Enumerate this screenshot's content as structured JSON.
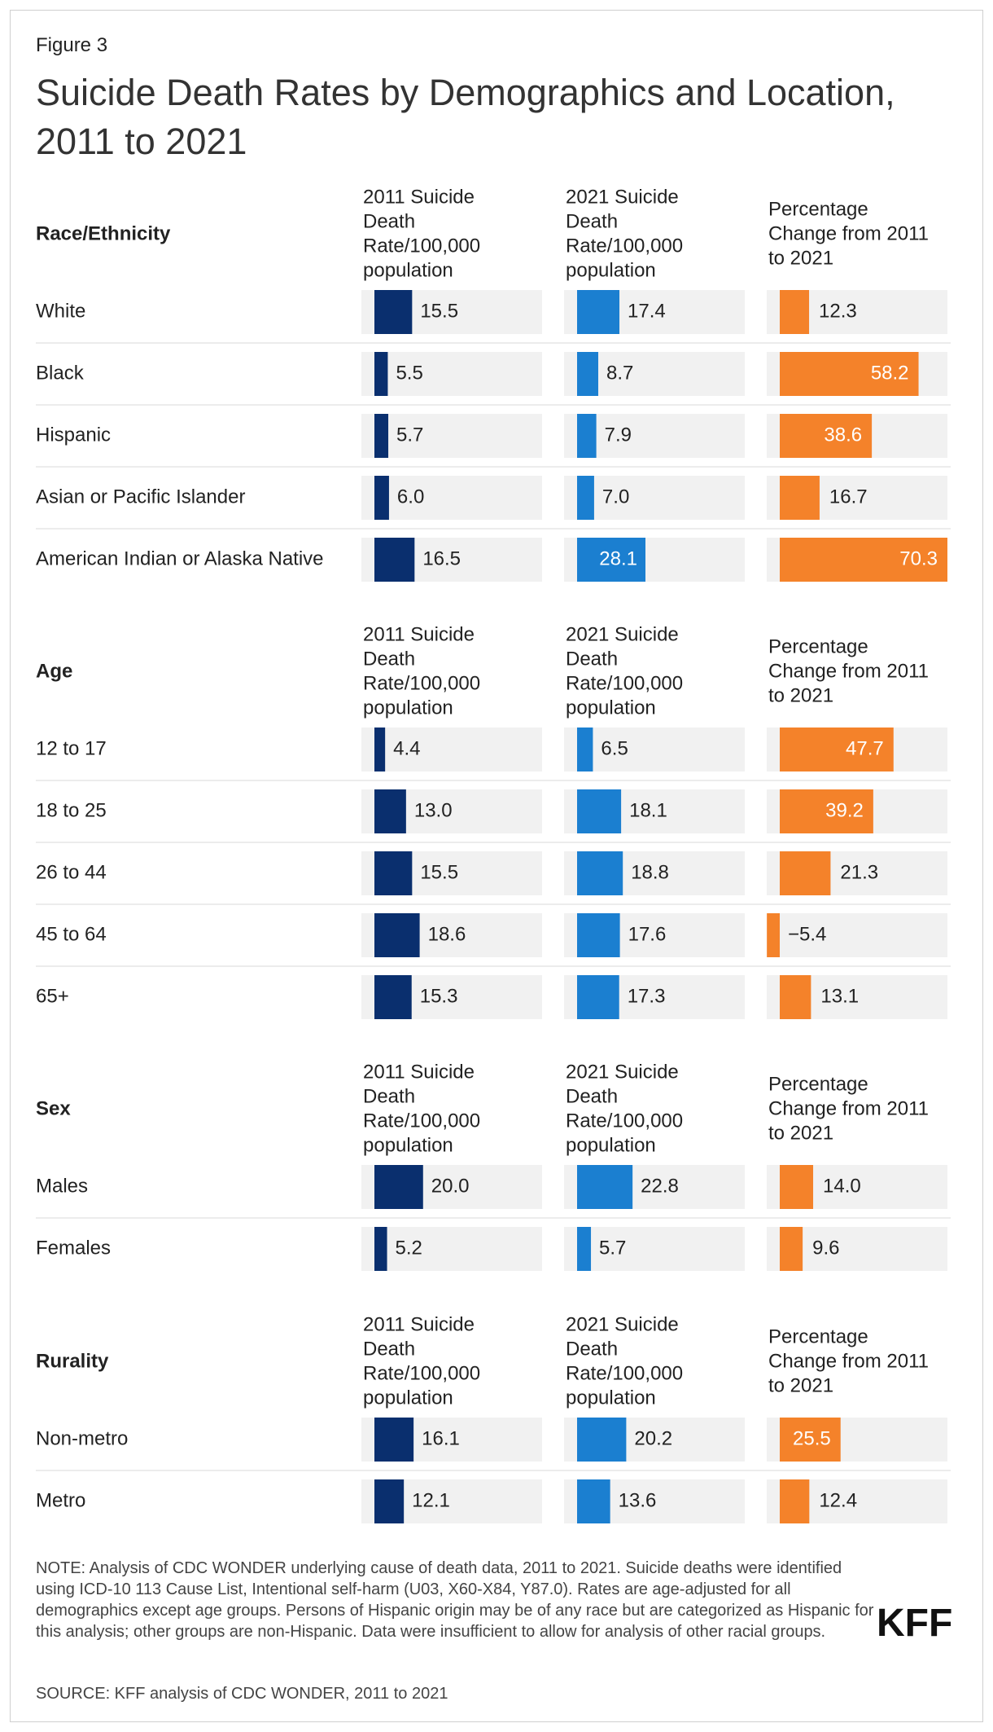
{
  "figure_label": "Figure 3",
  "title": "Suicide Death Rates by Demographics and Location, 2011 to 2021",
  "note": "NOTE: Analysis of CDC WONDER underlying cause of death data, 2011 to 2021. Suicide deaths were identified using ICD-10 113 Cause List, Intentional self-harm (U03, X60-X84, Y87.0). Rates are age-adjusted for all demographics except age groups. Persons of Hispanic origin may be of any race but are categorized as Hispanic for this analysis; other groups are non-Hispanic. Data were insufficient to allow for analysis of other racial groups.",
  "source": "SOURCE: KFF analysis of CDC WONDER, 2011 to 2021",
  "logo": "KFF",
  "colors": {
    "rate_2011": "#0a2f6e",
    "rate_2021": "#1b7fd0",
    "pct_change": "#f4822a",
    "track": "#f1f1f1",
    "divider": "#d9d9d9"
  },
  "chart_data": {
    "type": "table",
    "columns": [
      "2011 Suicide Death Rate/100,000 population",
      "2021 Suicide Death Rate/100,000 population",
      "Percentage Change from 2011 to 2021"
    ],
    "column_header_lines": [
      [
        "2011 Suicide",
        "Death",
        "Rate/100,000",
        "population"
      ],
      [
        "2021 Suicide",
        "Death",
        "Rate/100,000",
        "population"
      ],
      [
        "Percentage",
        "Change from 2011",
        "to 2021"
      ]
    ],
    "scales": {
      "rate_max": 28.1,
      "pct_max": 70.3
    },
    "sections": [
      {
        "name": "Race/Ethnicity",
        "rows": [
          {
            "label": "White",
            "rate_2011": 15.5,
            "rate_2021": 17.4,
            "pct_change": 12.3
          },
          {
            "label": "Black",
            "rate_2011": 5.5,
            "rate_2021": 8.7,
            "pct_change": 58.2
          },
          {
            "label": "Hispanic",
            "rate_2011": 5.7,
            "rate_2021": 7.9,
            "pct_change": 38.6
          },
          {
            "label": "Asian or Pacific Islander",
            "rate_2011": 6.0,
            "rate_2021": 7.0,
            "pct_change": 16.7
          },
          {
            "label": "American Indian or Alaska Native",
            "rate_2011": 16.5,
            "rate_2021": 28.1,
            "pct_change": 70.3
          }
        ]
      },
      {
        "name": "Age",
        "rows": [
          {
            "label": "12 to 17",
            "rate_2011": 4.4,
            "rate_2021": 6.5,
            "pct_change": 47.7
          },
          {
            "label": "18 to 25",
            "rate_2011": 13.0,
            "rate_2021": 18.1,
            "pct_change": 39.2
          },
          {
            "label": "26 to 44",
            "rate_2011": 15.5,
            "rate_2021": 18.8,
            "pct_change": 21.3
          },
          {
            "label": "45 to 64",
            "rate_2011": 18.6,
            "rate_2021": 17.6,
            "pct_change": -5.4
          },
          {
            "label": "65+",
            "rate_2011": 15.3,
            "rate_2021": 17.3,
            "pct_change": 13.1
          }
        ]
      },
      {
        "name": "Sex",
        "rows": [
          {
            "label": "Males",
            "rate_2011": 20.0,
            "rate_2021": 22.8,
            "pct_change": 14.0
          },
          {
            "label": "Females",
            "rate_2011": 5.2,
            "rate_2021": 5.7,
            "pct_change": 9.6
          }
        ]
      },
      {
        "name": "Rurality",
        "rows": [
          {
            "label": "Non-metro",
            "rate_2011": 16.1,
            "rate_2021": 20.2,
            "pct_change": 25.5
          },
          {
            "label": "Metro",
            "rate_2011": 12.1,
            "rate_2021": 13.6,
            "pct_change": 12.4
          }
        ]
      }
    ]
  }
}
